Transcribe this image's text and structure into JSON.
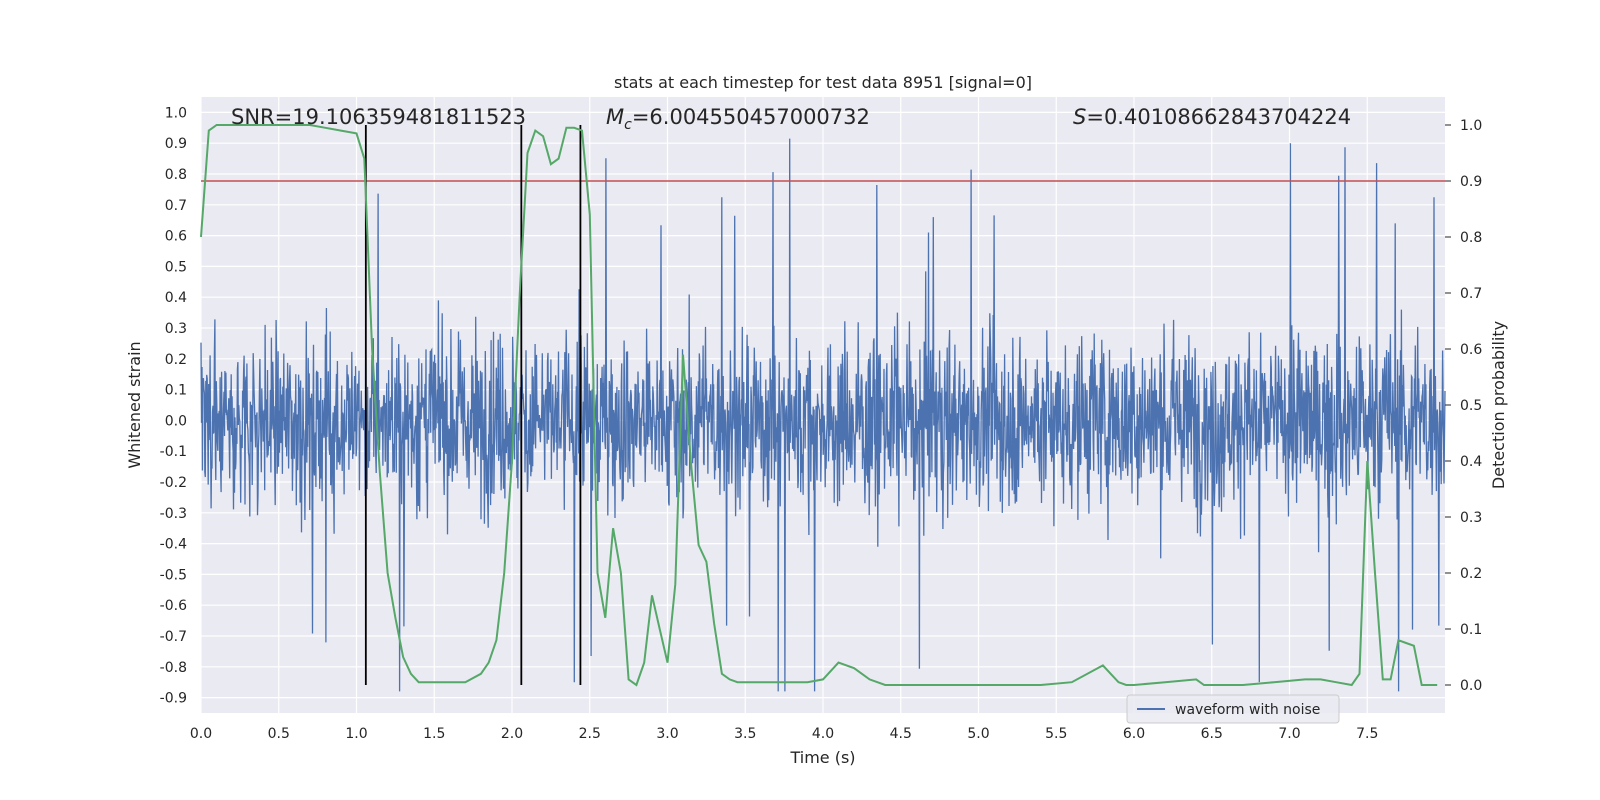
{
  "chart_data": {
    "type": "line",
    "title": "stats at each timestep for test data 8951 [signal=0]",
    "xlabel": "Time (s)",
    "ylabel": "Whitened strain",
    "y2label": "Detection probability",
    "xlim": [
      0.0,
      8.0
    ],
    "ylim": [
      -0.95,
      1.05
    ],
    "y2lim": [
      -0.05,
      1.05
    ],
    "x_ticks": [
      "0.0",
      "0.5",
      "1.0",
      "1.5",
      "2.0",
      "2.5",
      "3.0",
      "3.5",
      "4.0",
      "4.5",
      "5.0",
      "5.5",
      "6.0",
      "6.5",
      "7.0",
      "7.5"
    ],
    "y_ticks": [
      "1.0",
      "0.9",
      "0.8",
      "0.7",
      "0.6",
      "0.5",
      "0.4",
      "0.3",
      "0.2",
      "0.1",
      "0.0",
      "-0.1",
      "-0.2",
      "-0.3",
      "-0.4",
      "-0.5",
      "-0.6",
      "-0.7",
      "-0.8",
      "-0.9"
    ],
    "y2_ticks": [
      "1.0",
      "0.9",
      "0.8",
      "0.7",
      "0.6",
      "0.5",
      "0.4",
      "0.3",
      "0.2",
      "0.1",
      "0.0"
    ],
    "grid": true,
    "legend_position": "lower-right",
    "annotations": {
      "snr": "SNR=19.106359481811523",
      "mc_symbol": "M",
      "mc_sub": "c",
      "mc_value": "=6.004550457000732",
      "s_symbol": "S",
      "s_value": "=0.40108662843704224"
    },
    "series": [
      {
        "name": "waveform with noise",
        "axis": "left",
        "color": "#4c72b0",
        "kind": "noise",
        "amplitude_range": [
          -0.88,
          1.0
        ]
      },
      {
        "axis": "right",
        "color": "#55a868",
        "x": [
          0.0,
          0.05,
          0.1,
          0.15,
          0.2,
          0.3,
          0.4,
          0.5,
          0.6,
          0.7,
          0.8,
          0.9,
          1.0,
          1.05,
          1.1,
          1.15,
          1.2,
          1.25,
          1.3,
          1.35,
          1.4,
          1.5,
          1.6,
          1.7,
          1.8,
          1.85,
          1.9,
          1.95,
          2.0,
          2.05,
          2.1,
          2.15,
          2.2,
          2.25,
          2.3,
          2.35,
          2.4,
          2.45,
          2.5,
          2.55,
          2.6,
          2.65,
          2.7,
          2.75,
          2.8,
          2.85,
          2.9,
          2.95,
          3.0,
          3.05,
          3.1,
          3.15,
          3.2,
          3.25,
          3.3,
          3.35,
          3.4,
          3.45,
          3.5,
          3.55,
          3.6,
          3.7,
          3.8,
          3.9,
          4.0,
          4.1,
          4.2,
          4.25,
          4.3,
          4.4,
          4.5,
          4.6,
          4.7,
          4.8,
          4.9,
          5.0,
          5.2,
          5.4,
          5.6,
          5.8,
          5.85,
          5.9,
          5.95,
          6.0,
          6.2,
          6.4,
          6.45,
          6.5,
          6.7,
          6.9,
          7.1,
          7.2,
          7.3,
          7.4,
          7.45,
          7.5,
          7.55,
          7.6,
          7.65,
          7.7,
          7.75,
          7.8,
          7.85,
          7.9,
          7.95
        ],
        "values": [
          0.8,
          0.99,
          1.0,
          1.0,
          1.0,
          1.0,
          1.0,
          1.0,
          1.0,
          1.0,
          0.995,
          0.99,
          0.985,
          0.94,
          0.6,
          0.38,
          0.2,
          0.12,
          0.05,
          0.02,
          0.005,
          0.005,
          0.005,
          0.005,
          0.02,
          0.04,
          0.08,
          0.2,
          0.4,
          0.7,
          0.95,
          0.99,
          0.98,
          0.93,
          0.94,
          0.995,
          0.995,
          0.99,
          0.84,
          0.2,
          0.12,
          0.28,
          0.2,
          0.01,
          0.0,
          0.04,
          0.16,
          0.1,
          0.04,
          0.18,
          0.59,
          0.4,
          0.25,
          0.22,
          0.11,
          0.02,
          0.01,
          0.005,
          0.005,
          0.005,
          0.005,
          0.005,
          0.005,
          0.005,
          0.01,
          0.04,
          0.03,
          0.02,
          0.01,
          0.0,
          0.0,
          0.0,
          0.0,
          0.0,
          0.0,
          0.0,
          0.0,
          0.0,
          0.005,
          0.035,
          0.02,
          0.005,
          0.0,
          0.0,
          0.005,
          0.01,
          0.0,
          0.0,
          0.0,
          0.005,
          0.01,
          0.01,
          0.005,
          0.0,
          0.02,
          0.4,
          0.2,
          0.01,
          0.01,
          0.08,
          0.075,
          0.07,
          0.0,
          0.0,
          0.0
        ]
      }
    ],
    "threshold": {
      "value": 0.9,
      "axis": "right",
      "color": "#c44e52"
    },
    "vlines": [
      1.06,
      2.06,
      2.44
    ]
  }
}
